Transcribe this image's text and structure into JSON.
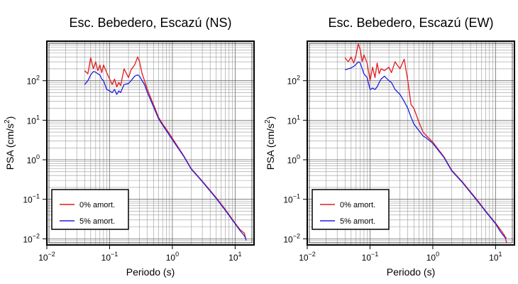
{
  "chart_data": [
    {
      "type": "line",
      "title": "Esc. Bebedero, Escazú (NS)",
      "xlabel": "Periodo (s)",
      "ylabel_base": "PSA (cm/s",
      "ylabel_sup": "2",
      "ylabel_close": ")",
      "x_scale": "log",
      "y_scale": "log",
      "xlim": [
        0.01,
        20
      ],
      "ylim": [
        0.007,
        1000
      ],
      "grid": true,
      "legend_position": "bottom-left",
      "x_ticks": [
        {
          "value": 0.01,
          "base": "10",
          "exp": "−2"
        },
        {
          "value": 0.1,
          "base": "10",
          "exp": "−1"
        },
        {
          "value": 1,
          "base": "10",
          "exp": "0"
        },
        {
          "value": 10,
          "base": "10",
          "exp": "1"
        }
      ],
      "y_ticks": [
        {
          "value": 0.01,
          "base": "10",
          "exp": "−2"
        },
        {
          "value": 0.1,
          "base": "10",
          "exp": "−1"
        },
        {
          "value": 1,
          "base": "10",
          "exp": "0"
        },
        {
          "value": 10,
          "base": "10",
          "exp": "1"
        },
        {
          "value": 100,
          "base": "10",
          "exp": "2"
        }
      ],
      "series": [
        {
          "name": "0% amort.",
          "color": "#e41a1c",
          "x": [
            0.04,
            0.045,
            0.05,
            0.055,
            0.06,
            0.065,
            0.07,
            0.075,
            0.08,
            0.09,
            0.1,
            0.11,
            0.12,
            0.13,
            0.14,
            0.15,
            0.17,
            0.2,
            0.22,
            0.25,
            0.28,
            0.3,
            0.33,
            0.36,
            0.4,
            0.5,
            0.6,
            0.7,
            0.8,
            1,
            1.5,
            2,
            3,
            5,
            7,
            10,
            12,
            14,
            15
          ],
          "y": [
            180,
            150,
            380,
            200,
            300,
            180,
            250,
            160,
            250,
            160,
            110,
            80,
            110,
            70,
            90,
            75,
            200,
            120,
            190,
            250,
            400,
            300,
            150,
            100,
            60,
            25,
            12,
            8,
            6,
            3.5,
            1.3,
            0.6,
            0.29,
            0.11,
            0.055,
            0.025,
            0.017,
            0.014,
            0.009
          ]
        },
        {
          "name": "5% amort.",
          "color": "#1f1fe0",
          "x": [
            0.04,
            0.045,
            0.05,
            0.055,
            0.06,
            0.065,
            0.07,
            0.075,
            0.08,
            0.09,
            0.1,
            0.11,
            0.12,
            0.13,
            0.14,
            0.15,
            0.17,
            0.2,
            0.22,
            0.25,
            0.28,
            0.3,
            0.33,
            0.36,
            0.4,
            0.5,
            0.6,
            0.7,
            0.8,
            1,
            1.5,
            2,
            3,
            5,
            7,
            10,
            12,
            14,
            15
          ],
          "y": [
            80,
            100,
            140,
            170,
            165,
            150,
            140,
            110,
            100,
            60,
            55,
            50,
            60,
            45,
            55,
            50,
            80,
            85,
            100,
            130,
            140,
            130,
            100,
            80,
            50,
            22,
            11,
            7.5,
            5.5,
            3.2,
            1.25,
            0.58,
            0.28,
            0.105,
            0.052,
            0.024,
            0.016,
            0.012,
            0.0095
          ]
        }
      ]
    },
    {
      "type": "line",
      "title": "Esc. Bebedero, Escazú (EW)",
      "xlabel": "Periodo (s)",
      "ylabel_base": "PSA (cm/s",
      "ylabel_sup": "2",
      "ylabel_close": ")",
      "x_scale": "log",
      "y_scale": "log",
      "xlim": [
        0.01,
        20
      ],
      "ylim": [
        0.007,
        1000
      ],
      "grid": true,
      "legend_position": "bottom-left",
      "x_ticks": [
        {
          "value": 0.01,
          "base": "10",
          "exp": "−2"
        },
        {
          "value": 0.1,
          "base": "10",
          "exp": "−1"
        },
        {
          "value": 1,
          "base": "10",
          "exp": "0"
        },
        {
          "value": 10,
          "base": "10",
          "exp": "1"
        }
      ],
      "y_ticks": [
        {
          "value": 0.01,
          "base": "10",
          "exp": "−2"
        },
        {
          "value": 0.1,
          "base": "10",
          "exp": "−1"
        },
        {
          "value": 1,
          "base": "10",
          "exp": "0"
        },
        {
          "value": 10,
          "base": "10",
          "exp": "1"
        },
        {
          "value": 100,
          "base": "10",
          "exp": "2"
        }
      ],
      "series": [
        {
          "name": "0% amort.",
          "color": "#e41a1c",
          "x": [
            0.04,
            0.045,
            0.05,
            0.055,
            0.06,
            0.065,
            0.07,
            0.075,
            0.08,
            0.09,
            0.1,
            0.11,
            0.12,
            0.13,
            0.14,
            0.15,
            0.17,
            0.2,
            0.22,
            0.25,
            0.3,
            0.35,
            0.4,
            0.45,
            0.5,
            0.6,
            0.7,
            0.8,
            1,
            1.5,
            2,
            3,
            5,
            7,
            10,
            12,
            14,
            15
          ],
          "y": [
            380,
            300,
            400,
            280,
            450,
            850,
            600,
            300,
            450,
            280,
            100,
            220,
            120,
            280,
            150,
            200,
            180,
            220,
            160,
            300,
            200,
            350,
            100,
            25,
            20,
            9,
            5,
            4,
            2.8,
            1.2,
            0.55,
            0.27,
            0.1,
            0.05,
            0.025,
            0.017,
            0.012,
            0.008
          ]
        },
        {
          "name": "5% amort.",
          "color": "#1f1fe0",
          "x": [
            0.04,
            0.045,
            0.05,
            0.055,
            0.06,
            0.065,
            0.07,
            0.075,
            0.08,
            0.09,
            0.1,
            0.11,
            0.12,
            0.13,
            0.14,
            0.15,
            0.17,
            0.2,
            0.22,
            0.25,
            0.3,
            0.35,
            0.4,
            0.45,
            0.5,
            0.6,
            0.7,
            0.8,
            1,
            1.5,
            2,
            3,
            5,
            7,
            10,
            12,
            14,
            15
          ],
          "y": [
            190,
            200,
            210,
            230,
            260,
            300,
            280,
            200,
            150,
            120,
            60,
            65,
            60,
            70,
            90,
            110,
            130,
            100,
            90,
            60,
            45,
            30,
            20,
            12,
            8,
            5.5,
            4,
            3.5,
            2.6,
            1.15,
            0.53,
            0.26,
            0.095,
            0.048,
            0.024,
            0.015,
            0.011,
            0.0105
          ]
        }
      ]
    }
  ]
}
